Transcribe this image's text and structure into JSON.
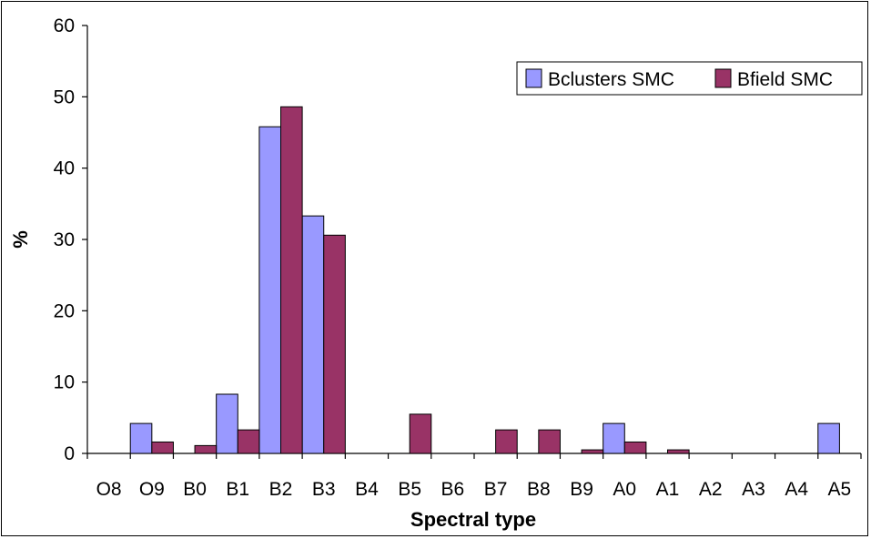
{
  "chart_data": {
    "type": "bar",
    "title": "",
    "xlabel": "Spectral type",
    "ylabel": "%",
    "ylim": [
      0,
      60
    ],
    "yticks": [
      0,
      10,
      20,
      30,
      40,
      50,
      60
    ],
    "grid": false,
    "legend_position": "top-right",
    "categories": [
      "O8",
      "O9",
      "B0",
      "B1",
      "B2",
      "B3",
      "B4",
      "B5",
      "B6",
      "B7",
      "B8",
      "B9",
      "A0",
      "A1",
      "A2",
      "A3",
      "A4",
      "A5"
    ],
    "series": [
      {
        "name": "Bclusters SMC",
        "color": "#9999ff",
        "values": [
          0,
          4.2,
          0,
          8.3,
          45.8,
          33.3,
          0,
          0,
          0,
          0,
          0,
          0,
          4.2,
          0,
          0,
          0,
          0,
          4.2
        ]
      },
      {
        "name": "Bfield SMC",
        "color": "#993366",
        "values": [
          0,
          1.6,
          1.1,
          3.3,
          48.6,
          30.6,
          0,
          5.5,
          0,
          3.3,
          3.3,
          0.5,
          1.6,
          0.5,
          0,
          0,
          0,
          0
        ]
      }
    ]
  }
}
